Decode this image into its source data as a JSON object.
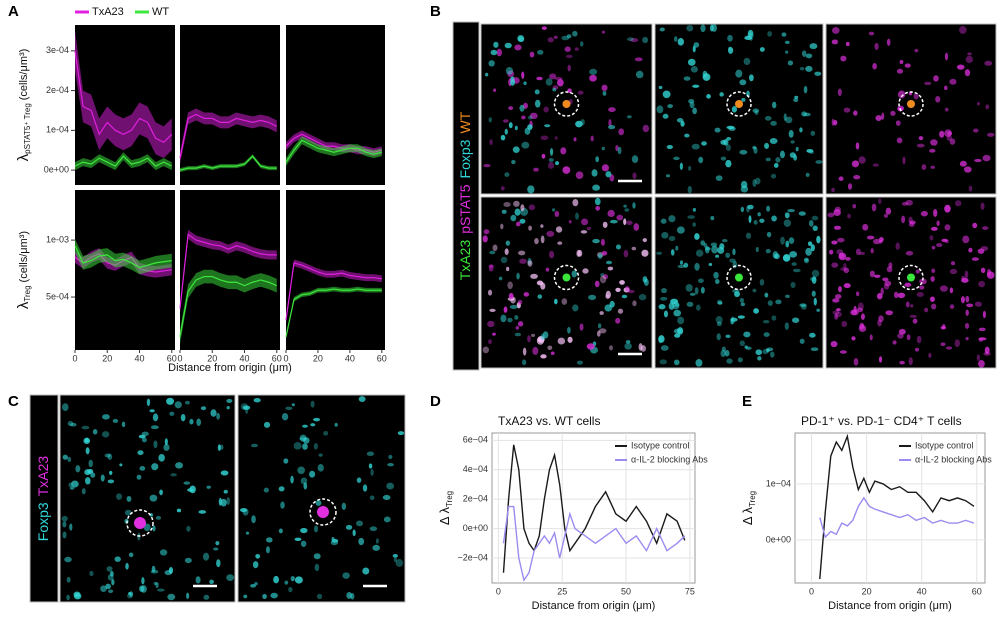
{
  "panel_labels": [
    "A",
    "B",
    "C",
    "D",
    "E"
  ],
  "microscopy": {
    "b": {
      "channels": [
        {
          "text": "TxA23",
          "color": "#3be63b"
        },
        {
          "text": "pSTAT5",
          "color": "#e030e0"
        },
        {
          "text": "Foxp3",
          "color": "#33d6d6"
        },
        {
          "text": "WT",
          "color": "#f08c1e"
        }
      ]
    },
    "c": {
      "channels": [
        {
          "text": "Foxp3",
          "color": "#33d6d6"
        },
        {
          "text": "TxA23",
          "color": "#e030e0"
        }
      ]
    }
  },
  "chart_data": [
    {
      "type": "ribbon_grid",
      "x_label": "Distance from origin (μm)",
      "xlim": [
        0,
        62
      ],
      "xticks": [
        0,
        20,
        40,
        60
      ],
      "x": [
        0,
        5,
        10,
        15,
        20,
        25,
        30,
        35,
        40,
        45,
        50,
        55,
        60
      ],
      "series": [
        {
          "name": "TxA23",
          "color": "#e020e0"
        },
        {
          "name": "WT",
          "color": "#3ee83e"
        }
      ],
      "rows": [
        {
          "y_label": [
            "λ",
            "pSTAT5⁺ Treg",
            "(cells/μm³)"
          ],
          "ylim": [
            -3.75e-05,
            0.000365
          ],
          "yticks": [
            {
              "value": 0,
              "label": "0e+00"
            },
            {
              "value": 0.0001,
              "label": "1e-04"
            },
            {
              "value": 0.0002,
              "label": "2e-04"
            },
            {
              "value": 0.0003,
              "label": "3e-04"
            }
          ],
          "panels": [
            [
              {
                "values": [
                  0.0003,
                  0.00016,
                  0.00015,
                  9e-05,
                  0.00012,
                  0.0001,
                  9e-05,
                  0.0001,
                  0.00013,
                  0.00012,
                  8e-05,
                  7e-05,
                  9e-05
                ],
                "errors": [
                  5e-05,
                  4e-05,
                  4e-05,
                  4e-05,
                  4e-05,
                  4e-05,
                  4e-05,
                  4e-05,
                  4e-05,
                  4e-05,
                  4e-05,
                  4e-05,
                  4e-05
                ]
              },
              {
                "values": [
                  1e-05,
                  2e-05,
                  1.5e-05,
                  3e-05,
                  2e-05,
                  1e-05,
                  3.5e-05,
                  1.5e-05,
                  2e-05,
                  3e-05,
                  1e-05,
                  2e-05,
                  1e-05
                ],
                "errors": [
                  1e-05,
                  1e-05,
                  1e-05,
                  1e-05,
                  1e-05,
                  1e-05,
                  1e-05,
                  1e-05,
                  1e-05,
                  1e-05,
                  1e-05,
                  1e-05,
                  1e-05
                ]
              }
            ],
            [
              {
                "values": [
                  3e-05,
                  0.00013,
                  0.00014,
                  0.00013,
                  0.00013,
                  0.00012,
                  0.00012,
                  0.00013,
                  0.000125,
                  0.00012,
                  0.000125,
                  0.00012,
                  0.00011
                ],
                "errors": [
                  1.5e-05,
                  1.5e-05,
                  1.5e-05,
                  1.5e-05,
                  1.5e-05,
                  1.5e-05,
                  1.5e-05,
                  1.5e-05,
                  1.5e-05,
                  1.5e-05,
                  1.5e-05,
                  1.5e-05,
                  1.5e-05
                ]
              },
              {
                "values": [
                  0,
                  5e-06,
                  5e-06,
                  1e-05,
                  5e-06,
                  1e-05,
                  1e-05,
                  1e-05,
                  1.5e-05,
                  3.5e-05,
                  1e-05,
                  5e-06,
                  5e-06
                ],
                "errors": [
                  5e-06,
                  5e-06,
                  5e-06,
                  5e-06,
                  5e-06,
                  5e-06,
                  5e-06,
                  5e-06,
                  5e-06,
                  5e-06,
                  5e-06,
                  5e-06,
                  5e-06
                ]
              }
            ],
            [
              {
                "values": [
                  6e-05,
                  8e-05,
                  9e-05,
                  8e-05,
                  7e-05,
                  6e-05,
                  6e-05,
                  5.5e-05,
                  5.5e-05,
                  5e-05,
                  5e-05,
                  4.5e-05,
                  5e-05
                ],
                "errors": [
                  1e-05,
                  1e-05,
                  1e-05,
                  1e-05,
                  1e-05,
                  1e-05,
                  1e-05,
                  1e-05,
                  1e-05,
                  1e-05,
                  1e-05,
                  1e-05,
                  1e-05
                ]
              },
              {
                "values": [
                  2e-05,
                  5e-05,
                  7.5e-05,
                  6.5e-05,
                  5.5e-05,
                  5e-05,
                  4.5e-05,
                  5e-05,
                  5.5e-05,
                  5.5e-05,
                  4.5e-05,
                  4e-05,
                  4.5e-05
                ],
                "errors": [
                  1e-05,
                  1e-05,
                  1e-05,
                  1e-05,
                  1e-05,
                  1e-05,
                  1e-05,
                  1e-05,
                  1e-05,
                  1e-05,
                  1e-05,
                  1e-05,
                  1e-05
                ]
              }
            ]
          ]
        },
        {
          "y_label": [
            "λ",
            "Treg",
            "(cells/μm³)"
          ],
          "ylim": [
            3.5e-05,
            0.00144
          ],
          "yticks": [
            {
              "value": 0.0005,
              "label": "5e-04"
            },
            {
              "value": 0.001,
              "label": "1e-03"
            }
          ],
          "panels": [
            [
              {
                "values": [
                  0.00085,
                  0.0008,
                  0.00085,
                  0.00088,
                  0.0008,
                  0.00078,
                  0.00082,
                  0.00085,
                  0.00075,
                  0.00073,
                  0.00072,
                  0.00073,
                  0.00074
                ],
                "errors": [
                  5e-05,
                  5e-05,
                  5e-05,
                  5e-05,
                  5e-05,
                  5e-05,
                  5e-05,
                  5e-05,
                  5e-05,
                  5e-05,
                  5e-05,
                  5e-05,
                  5e-05
                ]
              },
              {
                "values": [
                  0.00095,
                  0.0008,
                  0.00082,
                  0.00086,
                  0.00087,
                  0.00082,
                  0.00083,
                  0.0008,
                  0.00076,
                  0.00078,
                  0.0008,
                  0.00081,
                  0.00082
                ],
                "errors": [
                  6e-05,
                  6e-05,
                  6e-05,
                  6e-05,
                  6e-05,
                  6e-05,
                  6e-05,
                  6e-05,
                  6e-05,
                  6e-05,
                  6e-05,
                  6e-05,
                  6e-05
                ]
              }
            ],
            [
              {
                "values": [
                  0.0004,
                  0.00105,
                  0.001,
                  0.00098,
                  0.00096,
                  0.00095,
                  0.00092,
                  0.00095,
                  0.00093,
                  0.0009,
                  0.00088,
                  0.00087,
                  0.00087
                ],
                "errors": [
                  4e-05,
                  4e-05,
                  4e-05,
                  4e-05,
                  4e-05,
                  4e-05,
                  4e-05,
                  4e-05,
                  4e-05,
                  4e-05,
                  4e-05,
                  4e-05,
                  4e-05
                ]
              },
              {
                "values": [
                  0.00015,
                  0.00055,
                  0.00065,
                  0.00068,
                  0.00068,
                  0.00065,
                  0.00063,
                  0.00063,
                  0.0006,
                  0.00063,
                  0.00065,
                  0.00063,
                  0.0006
                ],
                "errors": [
                  6e-05,
                  6e-05,
                  6e-05,
                  6e-05,
                  6e-05,
                  6e-05,
                  6e-05,
                  6e-05,
                  6e-05,
                  6e-05,
                  6e-05,
                  6e-05,
                  6e-05
                ]
              }
            ],
            [
              {
                "values": [
                  0.0003,
                  0.0008,
                  0.00078,
                  0.00075,
                  0.00072,
                  0.0007,
                  0.0007,
                  0.00071,
                  0.00069,
                  0.00068,
                  0.00067,
                  0.00067,
                  0.00066
                ],
                "errors": [
                  3e-05,
                  3e-05,
                  3e-05,
                  3e-05,
                  3e-05,
                  3e-05,
                  3e-05,
                  3e-05,
                  3e-05,
                  3e-05,
                  3e-05,
                  3e-05,
                  3e-05
                ]
              },
              {
                "values": [
                  0.00015,
                  0.00048,
                  0.00052,
                  0.00053,
                  0.00056,
                  0.00056,
                  0.00057,
                  0.00056,
                  0.00056,
                  0.00057,
                  0.00056,
                  0.00056,
                  0.00056
                ],
                "errors": [
                  2e-05,
                  2e-05,
                  2e-05,
                  2e-05,
                  2e-05,
                  2e-05,
                  2e-05,
                  2e-05,
                  2e-05,
                  2e-05,
                  2e-05,
                  2e-05,
                  2e-05
                ]
              }
            ]
          ]
        }
      ]
    },
    {
      "type": "line",
      "title": "TxA23 vs. WT cells",
      "y_label": "Δ λ",
      "y_label_sub": "Treg",
      "x_label": "Distance from origin (μm)",
      "grid": true,
      "xlim": [
        -2.5,
        77
      ],
      "xticks": [
        0,
        25,
        50,
        75
      ],
      "ylim": [
        -0.00037,
        0.00065
      ],
      "yticks": [
        {
          "value": -0.0002,
          "label": "−2e−04"
        },
        {
          "value": 0,
          "label": "0e+00"
        },
        {
          "value": 0.0002,
          "label": "2e−04"
        },
        {
          "value": 0.0004,
          "label": "4e−04"
        },
        {
          "value": 0.0006,
          "label": "6e−04"
        }
      ],
      "x": [
        2,
        4,
        6,
        8,
        10,
        12,
        14,
        16,
        18,
        20,
        22,
        24,
        26,
        28,
        30,
        34,
        38,
        42,
        46,
        50,
        54,
        58,
        62,
        66,
        70,
        73
      ],
      "series": [
        {
          "name": "Isotype control",
          "color": "#1a1a1a",
          "values": [
            -0.0003,
            0.0002,
            0.00057,
            0.0004,
            0,
            -0.0001,
            -0.00015,
            -5e-05,
            0.0002,
            0.0004,
            0.0005,
            0.0003,
            0,
            -0.00015,
            -0.0001,
            0,
            0.00015,
            0.00025,
            0.0001,
            5e-05,
            0.00015,
            5e-05,
            -0.0001,
            0.0001,
            5e-05,
            -8e-05
          ]
        },
        {
          "name": "α-IL-2 blocking Abs",
          "color": "#9a8cf0",
          "values": [
            -0.0001,
            0.00015,
            0.00015,
            -0.0002,
            -0.00035,
            -0.0003,
            -0.00015,
            -0.0001,
            -5e-05,
            -0.0001,
            -3e-05,
            -0.0002,
            -5e-05,
            0.0001,
            0,
            -5e-05,
            -0.0001,
            -5e-05,
            0,
            -0.0001,
            -5e-05,
            -0.00015,
            0,
            -0.00015,
            -0.0001,
            -5e-05
          ]
        }
      ]
    },
    {
      "type": "line",
      "title": "PD-1⁺ vs. PD-1⁻ CD4⁺ T cells",
      "y_label": "Δ λ",
      "y_label_sub": "Treg",
      "x_label": "Distance from origin (μm)",
      "grid": true,
      "xlim": [
        -6,
        63
      ],
      "xticks": [
        0,
        20,
        40,
        60
      ],
      "ylim": [
        -7.7e-05,
        0.000191
      ],
      "yticks": [
        {
          "value": 0,
          "label": "0e+00"
        },
        {
          "value": 0.0001,
          "label": "1e−04"
        }
      ],
      "x": [
        3,
        5,
        7,
        9,
        11,
        13,
        15,
        17,
        19,
        21,
        23,
        26,
        29,
        32,
        35,
        38,
        41,
        44,
        47,
        50,
        53,
        56,
        59
      ],
      "series": [
        {
          "name": "Isotype control",
          "color": "#1a1a1a",
          "values": [
            -7e-05,
            5e-05,
            0.00015,
            0.000175,
            0.00016,
            0.000185,
            0.00013,
            9e-05,
            0.00011,
            8.5e-05,
            0.000105,
            0.0001,
            9e-05,
            9.5e-05,
            8.5e-05,
            8.5e-05,
            7e-05,
            5e-05,
            7.5e-05,
            7e-05,
            7.5e-05,
            7e-05,
            6e-05
          ]
        },
        {
          "name": "α-IL-2 blocking Abs",
          "color": "#9a8cf0",
          "values": [
            4e-05,
            5e-06,
            1.5e-05,
            1e-05,
            3e-05,
            2.5e-05,
            3.5e-05,
            6e-05,
            7.5e-05,
            6e-05,
            5.5e-05,
            5e-05,
            4.5e-05,
            4e-05,
            4.5e-05,
            3.5e-05,
            4e-05,
            3e-05,
            3.5e-05,
            3e-05,
            3e-05,
            3.5e-05,
            3e-05
          ]
        }
      ]
    }
  ]
}
